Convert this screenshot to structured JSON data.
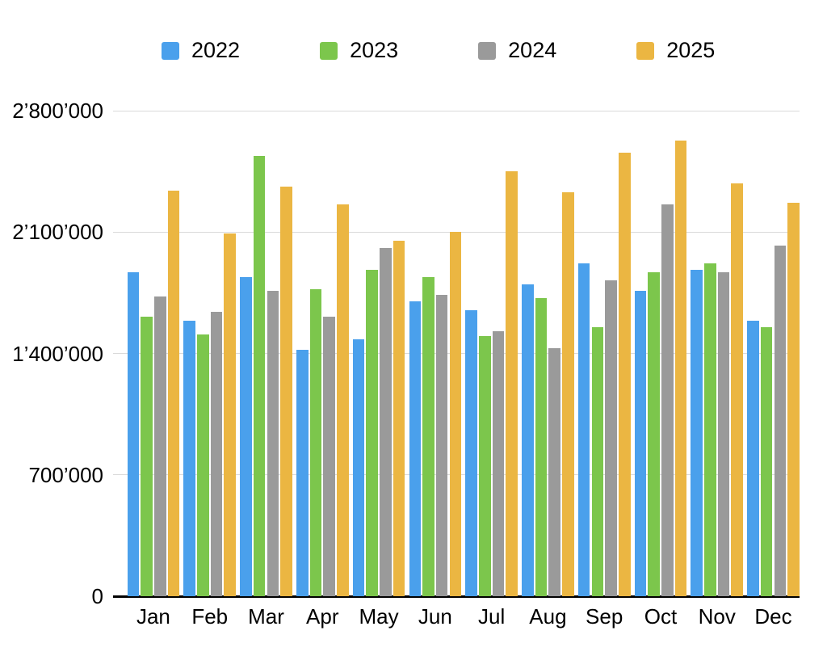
{
  "chart_data": {
    "type": "bar",
    "title": "",
    "categories": [
      "Jan",
      "Feb",
      "Mar",
      "Apr",
      "May",
      "Jun",
      "Jul",
      "Aug",
      "Sep",
      "Oct",
      "Nov",
      "Dec"
    ],
    "series": [
      {
        "name": "2022",
        "color": "#4AA0EC",
        "values": [
          1870000,
          1590000,
          1840000,
          1420000,
          1480000,
          1700000,
          1650000,
          1800000,
          1920000,
          1760000,
          1880000,
          1590000
        ]
      },
      {
        "name": "2023",
        "color": "#7CC64C",
        "values": [
          1610000,
          1510000,
          2540000,
          1770000,
          1880000,
          1840000,
          1500000,
          1720000,
          1550000,
          1870000,
          1920000,
          1550000
        ]
      },
      {
        "name": "2024",
        "color": "#9A9A9A",
        "values": [
          1730000,
          1640000,
          1760000,
          1610000,
          2010000,
          1740000,
          1530000,
          1430000,
          1820000,
          2260000,
          1870000,
          2020000
        ]
      },
      {
        "name": "2025",
        "color": "#EBB642",
        "values": [
          2340000,
          2090000,
          2360000,
          2260000,
          2050000,
          2100000,
          2450000,
          2330000,
          2560000,
          2630000,
          2380000,
          2270000
        ]
      }
    ],
    "ylim": [
      0,
      2800000
    ],
    "yticks": [
      {
        "value": 2800000,
        "label": "2’800’000"
      },
      {
        "value": 2100000,
        "label": "2’100’000"
      },
      {
        "value": 1400000,
        "label": "1’400’000"
      },
      {
        "value": 700000,
        "label": "700’000"
      },
      {
        "value": 0,
        "label": "0"
      }
    ],
    "grid": true,
    "legend_position": "top",
    "colors": {
      "gridline": "#DADADA",
      "axis_line": "#000000",
      "text": "#000000",
      "background": "#FFFFFF"
    }
  }
}
